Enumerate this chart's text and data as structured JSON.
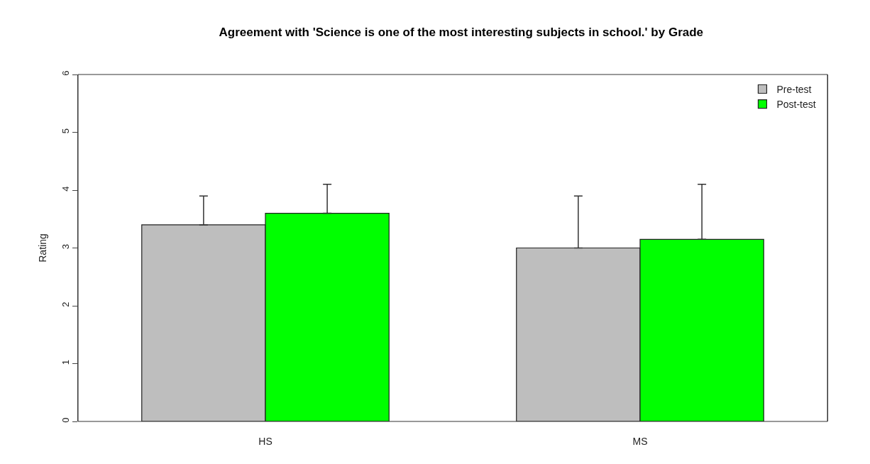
{
  "chart_data": {
    "type": "bar",
    "title": "Agreement with 'Science is one of the most interesting subjects in school.' by Grade",
    "ylabel": "Rating",
    "categories": [
      "HS",
      "MS"
    ],
    "series": [
      {
        "name": "Pre-test",
        "color": "#bebebe",
        "values": [
          3.4,
          3.0
        ],
        "errors": [
          [
            3.4,
            3.9
          ],
          [
            3.0,
            3.9
          ]
        ]
      },
      {
        "name": "Post-test",
        "color": "#00ff00",
        "values": [
          3.6,
          3.15
        ],
        "errors": [
          [
            3.6,
            4.1
          ],
          [
            3.15,
            4.1
          ]
        ]
      }
    ],
    "ylim": [
      0,
      6
    ],
    "yticks": [
      0,
      1,
      2,
      3,
      4,
      5,
      6
    ],
    "legend": "top right"
  }
}
